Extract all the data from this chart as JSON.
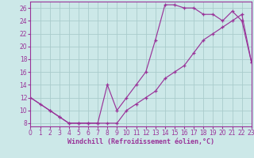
{
  "bg_color": "#cce8e8",
  "grid_color": "#aacccc",
  "line_color": "#993399",
  "xlabel": "Windchill (Refroidissement éolien,°C)",
  "upper_curve_x": [
    0,
    1,
    2,
    3,
    4,
    5,
    6,
    7,
    8,
    9,
    10,
    11,
    12,
    13,
    14,
    15,
    16,
    17,
    18,
    19,
    20,
    21,
    22,
    23
  ],
  "upper_curve_y": [
    12,
    11,
    10,
    9,
    8,
    8,
    8,
    8,
    14,
    10,
    12,
    14,
    16,
    21,
    26.5,
    26.5,
    26,
    26,
    25,
    25,
    24,
    25.5,
    24,
    17.5
  ],
  "lower_curve_x": [
    0,
    2,
    3,
    4,
    5,
    6,
    7,
    8,
    9,
    10,
    11,
    12,
    13,
    14,
    15,
    16,
    17,
    18,
    19,
    20,
    21,
    22,
    23
  ],
  "lower_curve_y": [
    12,
    10,
    9,
    8,
    8,
    8,
    8,
    8,
    8,
    10,
    11,
    12,
    13,
    15,
    16,
    17,
    19,
    21,
    22,
    23,
    24,
    25,
    17.5
  ],
  "xlim": [
    0,
    23
  ],
  "ylim": [
    7.5,
    27
  ],
  "xticks": [
    0,
    1,
    2,
    3,
    4,
    5,
    6,
    7,
    8,
    9,
    10,
    11,
    12,
    13,
    14,
    15,
    16,
    17,
    18,
    19,
    20,
    21,
    22,
    23
  ],
  "yticks": [
    8,
    10,
    12,
    14,
    16,
    18,
    20,
    22,
    24,
    26
  ],
  "tick_fontsize": 5.5,
  "xlabel_fontsize": 6.0
}
